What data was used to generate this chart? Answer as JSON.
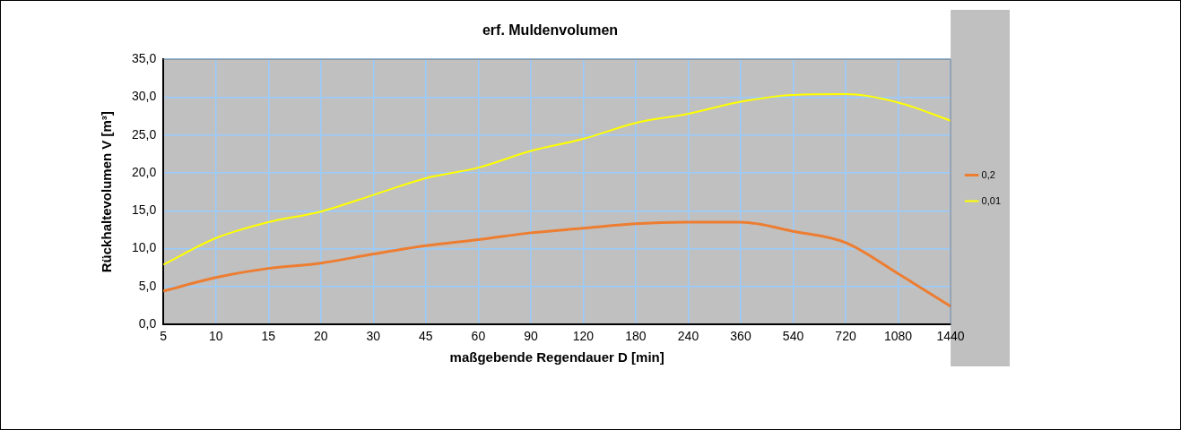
{
  "chart_data": {
    "type": "line",
    "title": "erf. Muldenvolumen",
    "xlabel": "maßgebende Regendauer D [min]",
    "ylabel": "Rückhaltevolumen V [m³]",
    "categories": [
      "5",
      "10",
      "15",
      "20",
      "30",
      "45",
      "60",
      "90",
      "120",
      "180",
      "240",
      "360",
      "540",
      "720",
      "1080",
      "1440"
    ],
    "series": [
      {
        "name": "0,2",
        "color": "#ed7d31",
        "values": [
          4.4,
          6.2,
          7.4,
          8.1,
          9.3,
          10.4,
          11.2,
          12.1,
          12.7,
          13.3,
          13.5,
          13.5,
          12.3,
          10.8,
          6.7,
          2.4
        ]
      },
      {
        "name": "0,01",
        "color": "#ffff00",
        "values": [
          7.9,
          11.4,
          13.5,
          14.9,
          17.1,
          19.3,
          20.7,
          22.9,
          24.5,
          26.6,
          27.8,
          29.4,
          30.3,
          30.4,
          29.3,
          26.9
        ]
      }
    ],
    "ylim": [
      0,
      35
    ],
    "yticks": [
      {
        "value": 0,
        "label": "0,0"
      },
      {
        "value": 5,
        "label": "5,0"
      },
      {
        "value": 10,
        "label": "10,0"
      },
      {
        "value": 15,
        "label": "15,0"
      },
      {
        "value": 20,
        "label": "20,0"
      },
      {
        "value": 25,
        "label": "25,0"
      },
      {
        "value": 30,
        "label": "30,0"
      },
      {
        "value": 35,
        "label": "35,0"
      }
    ],
    "grid": true,
    "legend": "right",
    "marker": "none",
    "line_style": "solid"
  }
}
